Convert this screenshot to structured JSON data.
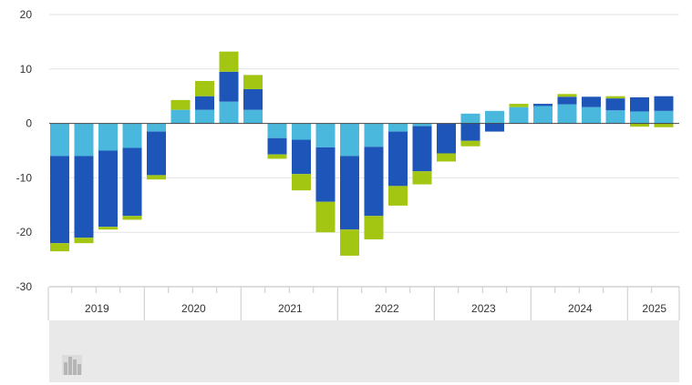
{
  "chart_data": {
    "type": "bar",
    "stacked": true,
    "ylim": [
      -30,
      20
    ],
    "y_ticks": [
      20,
      10,
      0,
      -10,
      -20,
      -30
    ],
    "grid": true,
    "year_labels": [
      "2019",
      "2020",
      "2021",
      "2022",
      "2023",
      "2024",
      "2025"
    ],
    "year_quarter_counts": [
      4,
      4,
      4,
      4,
      4,
      4,
      2
    ],
    "series_colors": [
      "#4ab8dc",
      "#1d55b9",
      "#a2c612"
    ],
    "positive_stack_order": [
      "series_light_blue",
      "series_dark_blue",
      "series_green"
    ],
    "negative_stack_order": [
      "series_light_blue",
      "series_dark_blue",
      "series_green"
    ],
    "quarters": [
      {
        "year": "2019",
        "q": 1,
        "light_blue": -6.0,
        "dark_blue": -16.0,
        "green": -1.5
      },
      {
        "year": "2019",
        "q": 2,
        "light_blue": -6.0,
        "dark_blue": -15.0,
        "green": -1.0
      },
      {
        "year": "2019",
        "q": 3,
        "light_blue": -5.0,
        "dark_blue": -14.0,
        "green": -0.5
      },
      {
        "year": "2019",
        "q": 4,
        "light_blue": -4.5,
        "dark_blue": -12.5,
        "green": -0.7
      },
      {
        "year": "2020",
        "q": 1,
        "light_blue": -1.5,
        "dark_blue": -8.0,
        "green": -0.8
      },
      {
        "year": "2020",
        "q": 2,
        "light_blue": 2.5,
        "dark_blue": 0.0,
        "green": 1.8
      },
      {
        "year": "2020",
        "q": 3,
        "light_blue": 2.5,
        "dark_blue": 2.5,
        "green": 2.8
      },
      {
        "year": "2020",
        "q": 4,
        "light_blue": 4.0,
        "dark_blue": 5.5,
        "green": 3.7
      },
      {
        "year": "2021",
        "q": 1,
        "light_blue": 2.5,
        "dark_blue": 3.8,
        "green": 2.6
      },
      {
        "year": "2021",
        "q": 2,
        "light_blue": -2.7,
        "dark_blue": -3.0,
        "green": -0.8
      },
      {
        "year": "2021",
        "q": 3,
        "light_blue": -3.0,
        "dark_blue": -6.3,
        "green": -3.0
      },
      {
        "year": "2021",
        "q": 4,
        "light_blue": -4.4,
        "dark_blue": -10.0,
        "green": -5.6
      },
      {
        "year": "2022",
        "q": 1,
        "light_blue": -6.0,
        "dark_blue": -13.5,
        "green": -4.8
      },
      {
        "year": "2022",
        "q": 2,
        "light_blue": -4.3,
        "dark_blue": -12.7,
        "green": -4.3
      },
      {
        "year": "2022",
        "q": 3,
        "light_blue": -1.5,
        "dark_blue": -10.0,
        "green": -3.6
      },
      {
        "year": "2022",
        "q": 4,
        "light_blue": -0.5,
        "dark_blue": -8.3,
        "green": -2.4
      },
      {
        "year": "2023",
        "q": 1,
        "light_blue": 0.0,
        "dark_blue": -5.5,
        "green": -1.5
      },
      {
        "year": "2023",
        "q": 2,
        "light_blue": 1.8,
        "dark_blue": -3.2,
        "green": -1.0
      },
      {
        "year": "2023",
        "q": 3,
        "light_blue": 2.3,
        "dark_blue": -1.5,
        "green": 0.0
      },
      {
        "year": "2023",
        "q": 4,
        "light_blue": 3.0,
        "dark_blue": 0.0,
        "green": 0.6
      },
      {
        "year": "2024",
        "q": 1,
        "light_blue": 3.2,
        "dark_blue": 0.4,
        "green": 0.0
      },
      {
        "year": "2024",
        "q": 2,
        "light_blue": 3.5,
        "dark_blue": 1.4,
        "green": 0.5
      },
      {
        "year": "2024",
        "q": 3,
        "light_blue": 3.0,
        "dark_blue": 1.9,
        "green": 0.0
      },
      {
        "year": "2024",
        "q": 4,
        "light_blue": 2.4,
        "dark_blue": 2.2,
        "green": 0.4
      },
      {
        "year": "2025",
        "q": 1,
        "light_blue": 2.2,
        "dark_blue": 2.6,
        "green": -0.6
      },
      {
        "year": "2025",
        "q": 2,
        "light_blue": 2.3,
        "dark_blue": 2.7,
        "green": -0.7
      }
    ]
  },
  "footer": {
    "icon": "bar-chart-icon"
  }
}
